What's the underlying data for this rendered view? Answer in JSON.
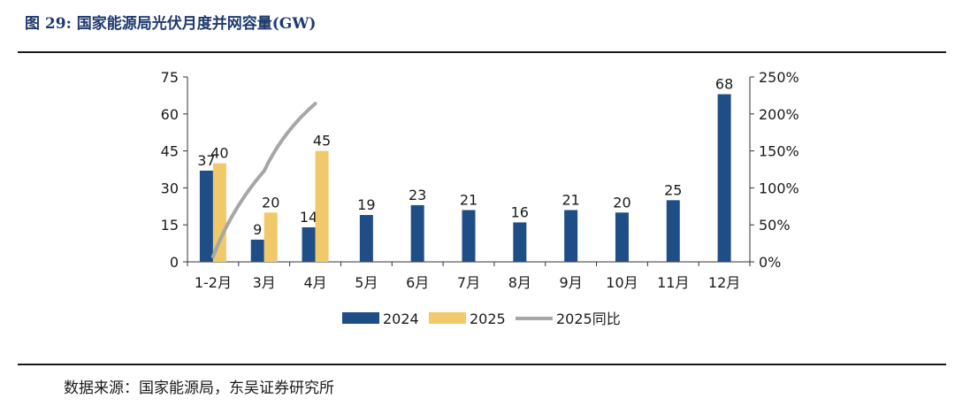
{
  "figure_title": "图 29:  国家能源局光伏月度并网容量(GW)",
  "source": "数据来源：国家能源局，东吴证券研究所",
  "chart_data": {
    "type": "bar",
    "categories": [
      "1-2月",
      "3月",
      "4月",
      "5月",
      "6月",
      "7月",
      "8月",
      "9月",
      "10月",
      "11月",
      "12月"
    ],
    "series": [
      {
        "name": "2024",
        "kind": "bar",
        "axis": "left",
        "color": "#1f4e87",
        "values": [
          37,
          9,
          14,
          19,
          23,
          21,
          16,
          21,
          20,
          25,
          68
        ]
      },
      {
        "name": "2025",
        "kind": "bar",
        "axis": "left",
        "color": "#f0c96a",
        "values": [
          40,
          20,
          45,
          null,
          null,
          null,
          null,
          null,
          null,
          null,
          null
        ]
      },
      {
        "name": "2025同比",
        "kind": "line",
        "axis": "right",
        "color": "#a6a6a6",
        "values": [
          7,
          123,
          214,
          null,
          null,
          null,
          null,
          null,
          null,
          null,
          null
        ]
      }
    ],
    "data_labels": {
      "2024": [
        "37",
        "9",
        "14",
        "19",
        "23",
        "21",
        "16",
        "21",
        "20",
        "25",
        "68"
      ],
      "2025": [
        "40",
        "20",
        "45",
        null,
        null,
        null,
        null,
        null,
        null,
        null,
        null
      ]
    },
    "ylim": [
      0,
      75
    ],
    "yticks": [
      "0",
      "15",
      "30",
      "45",
      "60",
      "75"
    ],
    "y2lim": [
      0,
      250
    ],
    "y2ticks": [
      "0%",
      "50%",
      "100%",
      "150%",
      "200%",
      "250%"
    ],
    "legend_position": "bottom",
    "grid": false
  }
}
